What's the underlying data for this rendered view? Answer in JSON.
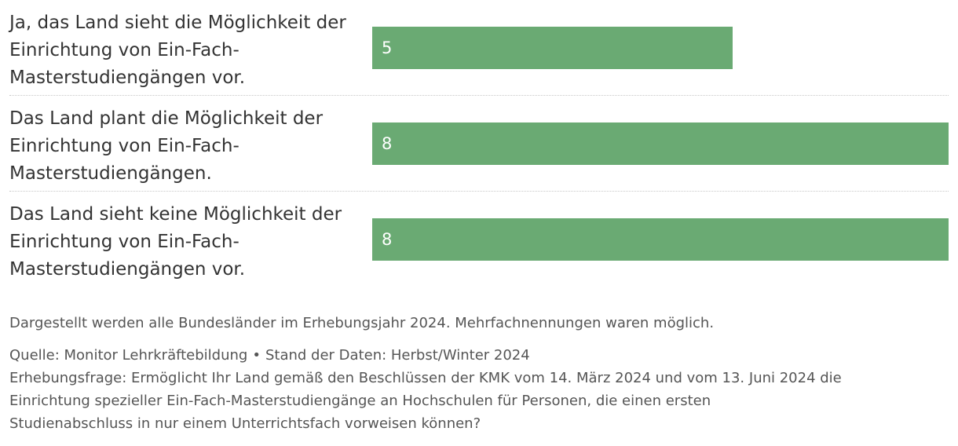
{
  "chart_data": {
    "type": "bar",
    "orientation": "horizontal",
    "categories": [
      "Ja, das Land sieht die Möglichkeit der Einrichtung von Ein-Fach-Masterstudiengängen vor.",
      "Das Land plant die Möglichkeit der Einrichtung von Ein-Fach-Masterstudiengängen.",
      "Das Land sieht keine Möglichkeit der Einrichtung von Ein-Fach-Masterstudiengängen vor."
    ],
    "label_lines": [
      [
        "Ja, das Land sieht die Möglichkeit der",
        "Einrichtung von Ein-Fach-",
        "Masterstudiengängen vor."
      ],
      [
        "Das Land plant die Möglichkeit der",
        "Einrichtung von Ein-Fach-",
        "Masterstudiengängen."
      ],
      [
        "Das Land sieht keine Möglichkeit der",
        "Einrichtung von Ein-Fach-",
        "Masterstudiengängen vor."
      ]
    ],
    "values": [
      5,
      8,
      8
    ],
    "xlim": [
      0,
      8
    ],
    "grid": false,
    "bar_color": "#6aaa73"
  },
  "note": "Dargestellt werden alle Bundesländer im Erhebungsjahr 2024. Mehrfachnennungen waren möglich.",
  "footer": {
    "source": "Quelle: Monitor Lehrkräftebildung",
    "separator": "•",
    "data_status": "Stand der Daten: Herbst/Winter 2024",
    "question_lines": [
      "Erhebungsfrage: Ermöglicht Ihr Land gemäß den Beschlüssen der KMK vom 14. März 2024 und vom 13. Juni 2024 die",
      "Einrichtung spezieller Ein-Fach-Masterstudiengänge an Hochschulen für Personen, die einen ersten",
      "Studienabschluss in nur einem Unterrichtsfach vorweisen können?"
    ]
  }
}
